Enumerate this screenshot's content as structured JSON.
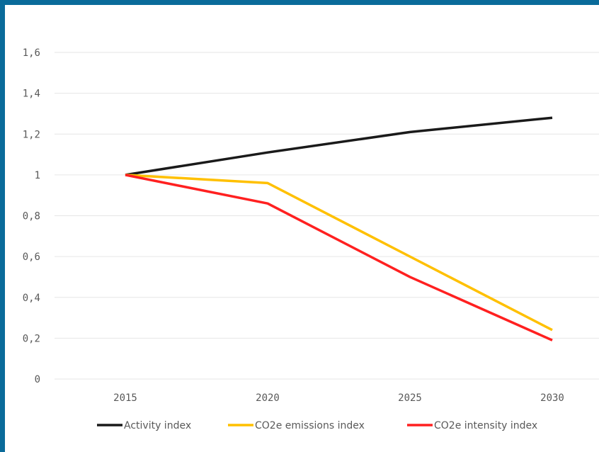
{
  "chart_data": {
    "type": "line",
    "title": "",
    "xlabel": "",
    "ylabel": "",
    "x": [
      "2015",
      "2020",
      "2025",
      "2030"
    ],
    "ylim": [
      0,
      1.6
    ],
    "yticks": [
      "0",
      "0,2",
      "0,4",
      "0,6",
      "0,8",
      "1",
      "1,2",
      "1,4",
      "1,6"
    ],
    "grid": "horizontal",
    "legend": "bottom",
    "series": [
      {
        "name": "Activity index",
        "color": "#1a1a1a",
        "values": [
          1.0,
          1.11,
          1.21,
          1.28
        ]
      },
      {
        "name": "CO2e emissions index",
        "color": "#ffc000",
        "values": [
          1.0,
          0.96,
          0.6,
          0.24
        ]
      },
      {
        "name": "CO2e intensity index",
        "color": "#ff2020",
        "values": [
          1.0,
          0.86,
          0.5,
          0.19
        ]
      }
    ]
  }
}
